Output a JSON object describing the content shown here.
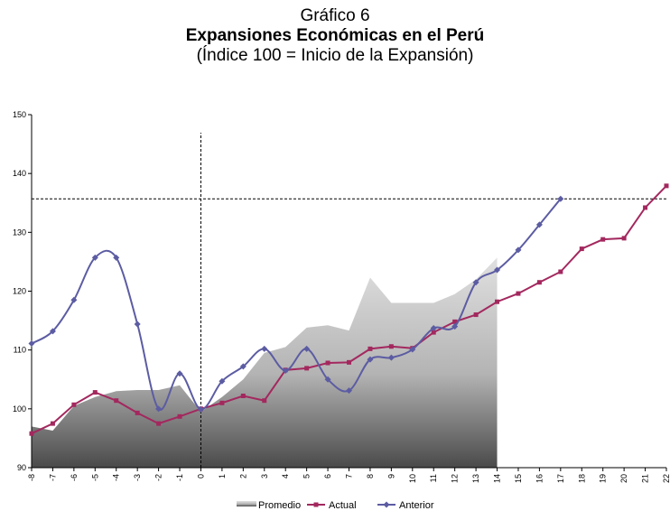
{
  "chart_data": {
    "type": "line",
    "title_prefix": "Gráfico 6",
    "title": "Expansiones Económicas en el Perú",
    "subtitle": "(Índice 100 = Inicio de la Expansión)",
    "x": [
      -8,
      -7,
      -6,
      -5,
      -4,
      -3,
      -2,
      -1,
      0,
      1,
      2,
      3,
      4,
      5,
      6,
      7,
      8,
      9,
      10,
      11,
      12,
      13,
      14,
      15,
      16,
      17,
      18,
      19,
      20,
      21,
      22
    ],
    "xlim": [
      -8,
      22
    ],
    "xticks": [
      -8,
      -7,
      -6,
      -5,
      -4,
      -3,
      -2,
      -1,
      0,
      1,
      2,
      3,
      4,
      5,
      6,
      7,
      8,
      9,
      10,
      11,
      12,
      13,
      14,
      15,
      16,
      17,
      18,
      19,
      20,
      21,
      22
    ],
    "ylim": [
      90,
      150
    ],
    "yticks": [
      90,
      100,
      110,
      120,
      130,
      140,
      150
    ],
    "hline": 135.7,
    "vline": 0,
    "legend": "bottom",
    "series": [
      {
        "name": "Promedio",
        "style": "area",
        "color": "#8c8c8c",
        "values": [
          97,
          96.3,
          100.5,
          102,
          103,
          103.2,
          103.2,
          104,
          99.5,
          102,
          105,
          109.5,
          110.5,
          113.8,
          114.2,
          113.3,
          122.3,
          118,
          118,
          118,
          119.5,
          122,
          125.7,
          null,
          null,
          null,
          null,
          null,
          null,
          null,
          null
        ]
      },
      {
        "name": "Actual",
        "style": "line",
        "marker": "square",
        "color": "#a3285e",
        "values": [
          95.8,
          97.5,
          100.7,
          102.8,
          101.4,
          99.3,
          97.5,
          98.7,
          100,
          101,
          102.2,
          101.4,
          106.6,
          106.9,
          107.8,
          107.9,
          110.2,
          110.6,
          110.3,
          113,
          114.8,
          116,
          118.2,
          119.6,
          121.5,
          123.3,
          127.2,
          128.8,
          129,
          134.2,
          137.9
        ]
      },
      {
        "name": "Anterior",
        "style": "smooth",
        "marker": "diamond",
        "color": "#5c5ca3",
        "values": [
          111.1,
          113.2,
          118.5,
          125.7,
          125.7,
          114.4,
          100,
          106,
          99.9,
          104.7,
          107.2,
          110.2,
          106.5,
          110.2,
          105,
          103.1,
          108.4,
          108.7,
          110.1,
          113.7,
          114,
          121.5,
          123.6,
          127,
          131.3,
          135.7,
          null,
          null,
          null,
          null,
          null
        ]
      }
    ]
  }
}
